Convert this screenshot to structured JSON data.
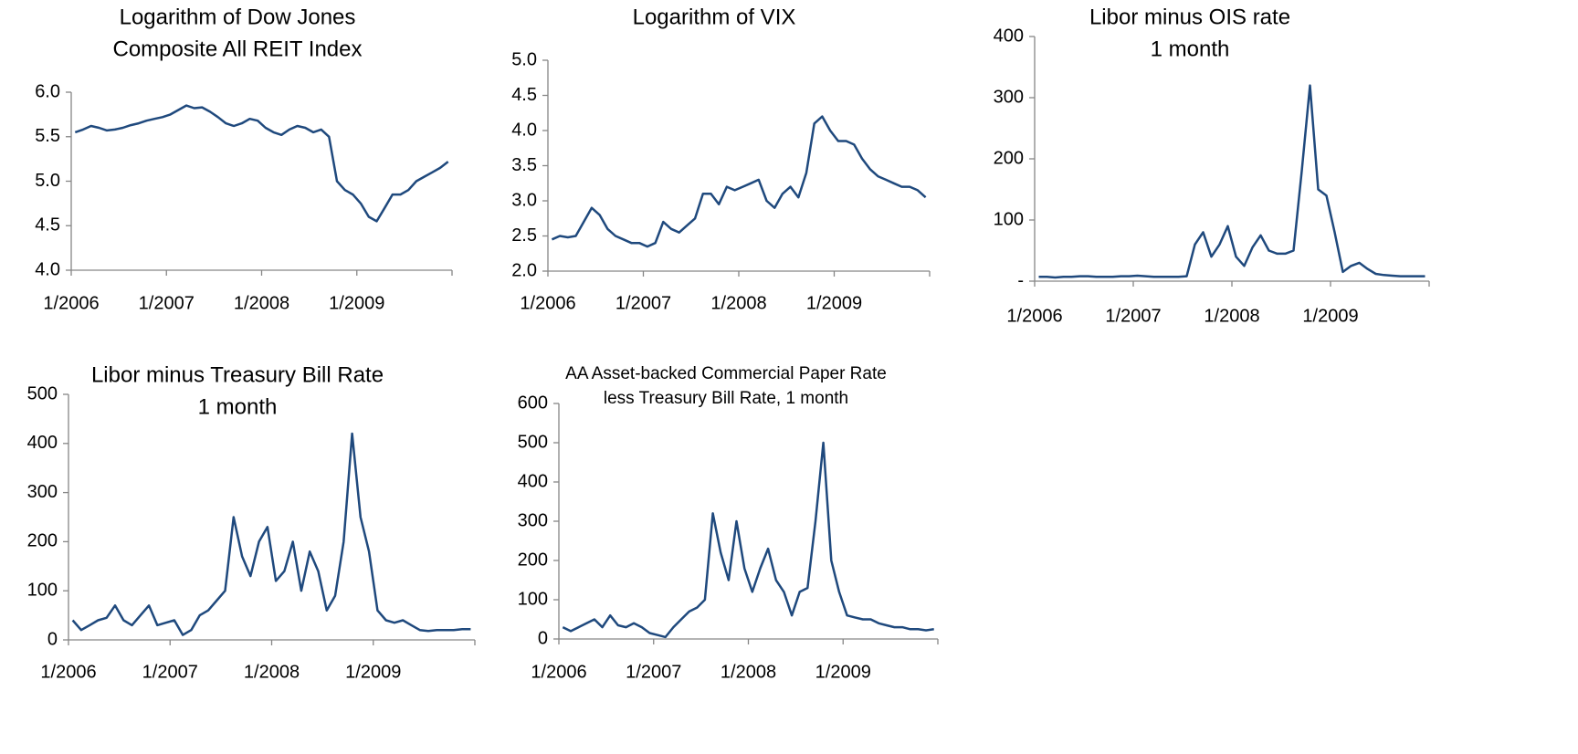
{
  "chart_data": [
    {
      "type": "line",
      "title": [
        "Logarithm of Dow Jones",
        "Composite All REIT Index"
      ],
      "x": [
        "1/2006",
        "2/2006",
        "3/2006",
        "4/2006",
        "5/2006",
        "6/2006",
        "7/2006",
        "8/2006",
        "9/2006",
        "10/2006",
        "11/2006",
        "12/2006",
        "1/2007",
        "2/2007",
        "3/2007",
        "4/2007",
        "5/2007",
        "6/2007",
        "7/2007",
        "8/2007",
        "9/2007",
        "10/2007",
        "11/2007",
        "12/2007",
        "1/2008",
        "2/2008",
        "3/2008",
        "4/2008",
        "5/2008",
        "6/2008",
        "7/2008",
        "8/2008",
        "9/2008",
        "10/2008",
        "11/2008",
        "12/2008",
        "1/2009",
        "2/2009",
        "3/2009",
        "4/2009",
        "5/2009",
        "6/2009",
        "7/2009",
        "8/2009",
        "9/2009",
        "10/2009",
        "11/2009",
        "12/2009"
      ],
      "xticks": [
        "1/2006",
        "1/2007",
        "1/2008",
        "1/2009"
      ],
      "series": [
        {
          "color": "#1f497d",
          "values": [
            5.55,
            5.58,
            5.62,
            5.6,
            5.57,
            5.58,
            5.6,
            5.63,
            5.65,
            5.68,
            5.7,
            5.72,
            5.75,
            5.8,
            5.85,
            5.82,
            5.83,
            5.78,
            5.72,
            5.65,
            5.62,
            5.65,
            5.7,
            5.68,
            5.6,
            5.55,
            5.52,
            5.58,
            5.62,
            5.6,
            5.55,
            5.58,
            5.5,
            5.0,
            4.9,
            4.85,
            4.75,
            4.6,
            4.55,
            4.7,
            4.85,
            4.85,
            4.9,
            5.0,
            5.05,
            5.1,
            5.15,
            5.22
          ]
        }
      ],
      "ylim": [
        4,
        6
      ],
      "yticks": [
        {
          "value": 4,
          "label": "4.0"
        },
        {
          "value": 4.5,
          "label": "4.5"
        },
        {
          "value": 5,
          "label": "5.0"
        },
        {
          "value": 5.5,
          "label": "5.5"
        },
        {
          "value": 6,
          "label": "6.0"
        }
      ]
    },
    {
      "type": "line",
      "title": [
        "Logarithm of VIX"
      ],
      "x": [
        "1/2006",
        "2/2006",
        "3/2006",
        "4/2006",
        "5/2006",
        "6/2006",
        "7/2006",
        "8/2006",
        "9/2006",
        "10/2006",
        "11/2006",
        "12/2006",
        "1/2007",
        "2/2007",
        "3/2007",
        "4/2007",
        "5/2007",
        "6/2007",
        "7/2007",
        "8/2007",
        "9/2007",
        "10/2007",
        "11/2007",
        "12/2007",
        "1/2008",
        "2/2008",
        "3/2008",
        "4/2008",
        "5/2008",
        "6/2008",
        "7/2008",
        "8/2008",
        "9/2008",
        "10/2008",
        "11/2008",
        "12/2008",
        "1/2009",
        "2/2009",
        "3/2009",
        "4/2009",
        "5/2009",
        "6/2009",
        "7/2009",
        "8/2009",
        "9/2009",
        "10/2009",
        "11/2009",
        "12/2009"
      ],
      "xticks": [
        "1/2006",
        "1/2007",
        "1/2008",
        "1/2009"
      ],
      "series": [
        {
          "color": "#1f497d",
          "values": [
            2.45,
            2.5,
            2.48,
            2.5,
            2.7,
            2.9,
            2.8,
            2.6,
            2.5,
            2.45,
            2.4,
            2.4,
            2.35,
            2.4,
            2.7,
            2.6,
            2.55,
            2.65,
            2.75,
            3.1,
            3.1,
            2.95,
            3.2,
            3.15,
            3.2,
            3.25,
            3.3,
            3.0,
            2.9,
            3.1,
            3.2,
            3.05,
            3.4,
            4.1,
            4.2,
            4.0,
            3.85,
            3.85,
            3.8,
            3.6,
            3.45,
            3.35,
            3.3,
            3.25,
            3.2,
            3.2,
            3.15,
            3.05
          ]
        }
      ],
      "ylim": [
        2,
        5
      ],
      "yticks": [
        {
          "value": 2,
          "label": "2.0"
        },
        {
          "value": 2.5,
          "label": "2.5"
        },
        {
          "value": 3,
          "label": "3.0"
        },
        {
          "value": 3.5,
          "label": "3.5"
        },
        {
          "value": 4,
          "label": "4.0"
        },
        {
          "value": 4.5,
          "label": "4.5"
        },
        {
          "value": 5,
          "label": "5.0"
        }
      ]
    },
    {
      "type": "line",
      "title": [
        "Libor minus OIS rate",
        "1 month"
      ],
      "x": [
        "1/2006",
        "2/2006",
        "3/2006",
        "4/2006",
        "5/2006",
        "6/2006",
        "7/2006",
        "8/2006",
        "9/2006",
        "10/2006",
        "11/2006",
        "12/2006",
        "1/2007",
        "2/2007",
        "3/2007",
        "4/2007",
        "5/2007",
        "6/2007",
        "7/2007",
        "8/2007",
        "9/2007",
        "10/2007",
        "11/2007",
        "12/2007",
        "1/2008",
        "2/2008",
        "3/2008",
        "4/2008",
        "5/2008",
        "6/2008",
        "7/2008",
        "8/2008",
        "9/2008",
        "10/2008",
        "11/2008",
        "12/2008",
        "1/2009",
        "2/2009",
        "3/2009",
        "4/2009",
        "5/2009",
        "6/2009",
        "7/2009",
        "8/2009",
        "9/2009",
        "10/2009",
        "11/2009",
        "12/2009"
      ],
      "xticks": [
        "1/2006",
        "1/2007",
        "1/2008",
        "1/2009"
      ],
      "series": [
        {
          "color": "#1f497d",
          "values": [
            7,
            7,
            6,
            7,
            7,
            8,
            8,
            7,
            7,
            7,
            8,
            8,
            9,
            8,
            7,
            7,
            7,
            7,
            8,
            60,
            80,
            40,
            60,
            90,
            40,
            25,
            55,
            75,
            50,
            45,
            45,
            50,
            180,
            320,
            150,
            140,
            80,
            15,
            25,
            30,
            20,
            12,
            10,
            9,
            8,
            8,
            8,
            8
          ]
        }
      ],
      "ylim": [
        0,
        400
      ],
      "yticks": [
        {
          "value": 0,
          "label": "-"
        },
        100,
        200,
        300,
        400
      ]
    },
    {
      "type": "line",
      "title": [
        "Libor minus Treasury Bill Rate",
        "1 month"
      ],
      "x": [
        "1/2006",
        "2/2006",
        "3/2006",
        "4/2006",
        "5/2006",
        "6/2006",
        "7/2006",
        "8/2006",
        "9/2006",
        "10/2006",
        "11/2006",
        "12/2006",
        "1/2007",
        "2/2007",
        "3/2007",
        "4/2007",
        "5/2007",
        "6/2007",
        "7/2007",
        "8/2007",
        "9/2007",
        "10/2007",
        "11/2007",
        "12/2007",
        "1/2008",
        "2/2008",
        "3/2008",
        "4/2008",
        "5/2008",
        "6/2008",
        "7/2008",
        "8/2008",
        "9/2008",
        "10/2008",
        "11/2008",
        "12/2008",
        "1/2009",
        "2/2009",
        "3/2009",
        "4/2009",
        "5/2009",
        "6/2009",
        "7/2009",
        "8/2009",
        "9/2009",
        "10/2009",
        "11/2009",
        "12/2009"
      ],
      "xticks": [
        "1/2006",
        "1/2007",
        "1/2008",
        "1/2009"
      ],
      "series": [
        {
          "color": "#1f497d",
          "values": [
            40,
            20,
            30,
            40,
            45,
            70,
            40,
            30,
            50,
            70,
            30,
            35,
            40,
            10,
            20,
            50,
            60,
            80,
            100,
            250,
            170,
            130,
            200,
            230,
            120,
            140,
            200,
            100,
            180,
            140,
            60,
            90,
            200,
            420,
            250,
            180,
            60,
            40,
            35,
            40,
            30,
            20,
            18,
            20,
            20,
            20,
            22,
            22
          ]
        }
      ],
      "ylim": [
        0,
        500
      ],
      "yticks": [
        0,
        100,
        200,
        300,
        400,
        500
      ]
    },
    {
      "type": "line",
      "title": [
        "AA Asset-backed Commercial Paper Rate",
        "less Treasury Bill Rate, 1 month"
      ],
      "x": [
        "1/2006",
        "2/2006",
        "3/2006",
        "4/2006",
        "5/2006",
        "6/2006",
        "7/2006",
        "8/2006",
        "9/2006",
        "10/2006",
        "11/2006",
        "12/2006",
        "1/2007",
        "2/2007",
        "3/2007",
        "4/2007",
        "5/2007",
        "6/2007",
        "7/2007",
        "8/2007",
        "9/2007",
        "10/2007",
        "11/2007",
        "12/2007",
        "1/2008",
        "2/2008",
        "3/2008",
        "4/2008",
        "5/2008",
        "6/2008",
        "7/2008",
        "8/2008",
        "9/2008",
        "10/2008",
        "11/2008",
        "12/2008",
        "1/2009",
        "2/2009",
        "3/2009",
        "4/2009",
        "5/2009",
        "6/2009",
        "7/2009",
        "8/2009",
        "9/2009",
        "10/2009",
        "11/2009",
        "12/2009"
      ],
      "xticks": [
        "1/2006",
        "1/2007",
        "1/2008",
        "1/2009"
      ],
      "series": [
        {
          "color": "#1f497d",
          "values": [
            30,
            20,
            30,
            40,
            50,
            30,
            60,
            35,
            30,
            40,
            30,
            15,
            10,
            5,
            30,
            50,
            70,
            80,
            100,
            320,
            220,
            150,
            300,
            180,
            120,
            180,
            230,
            150,
            120,
            60,
            120,
            130,
            300,
            500,
            200,
            120,
            60,
            55,
            50,
            50,
            40,
            35,
            30,
            30,
            25,
            25,
            22,
            25
          ]
        }
      ],
      "ylim": [
        0,
        600
      ],
      "yticks": [
        0,
        100,
        200,
        300,
        400,
        500,
        600
      ]
    }
  ]
}
